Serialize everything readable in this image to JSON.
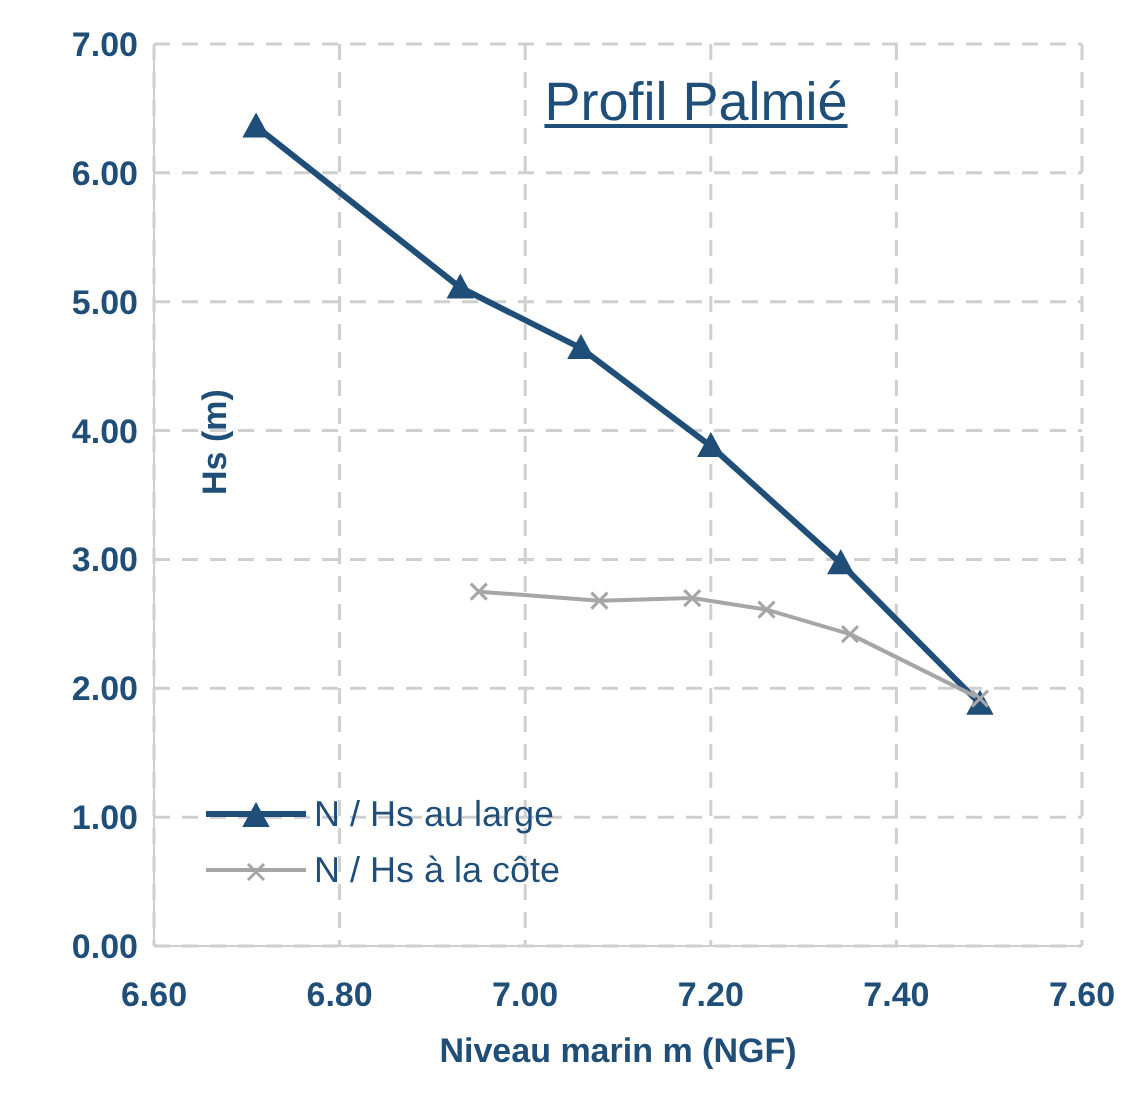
{
  "chart_data": {
    "type": "line",
    "title": "Profil Palmié",
    "xlabel": "Niveau marin m (NGF)",
    "ylabel": "Hs (m)",
    "xlim": [
      6.6,
      7.6
    ],
    "xticks": [
      {
        "value": 6.6,
        "label": "6.60"
      },
      {
        "value": 6.8,
        "label": "6.80"
      },
      {
        "value": 7.0,
        "label": "7.00"
      },
      {
        "value": 7.2,
        "label": "7.20"
      },
      {
        "value": 7.4,
        "label": "7.40"
      },
      {
        "value": 7.6,
        "label": "7.60"
      }
    ],
    "ylim": [
      0,
      7
    ],
    "yticks": [
      {
        "value": 0,
        "label": "0.00"
      },
      {
        "value": 1,
        "label": "1.00"
      },
      {
        "value": 2,
        "label": "2.00"
      },
      {
        "value": 3,
        "label": "3.00"
      },
      {
        "value": 4,
        "label": "4.00"
      },
      {
        "value": 5,
        "label": "5.00"
      },
      {
        "value": 6,
        "label": "6.00"
      },
      {
        "value": 7,
        "label": "7.00"
      }
    ],
    "grid": true,
    "legend": "bottom left",
    "line_style": "solid",
    "series": [
      {
        "name": "N / Hs au large",
        "color": "#1f4e79",
        "marker": "triangle",
        "x": [
          6.71,
          6.93,
          7.06,
          7.2,
          7.34,
          7.49
        ],
        "values": [
          6.36,
          5.11,
          4.64,
          3.88,
          2.97,
          1.88
        ]
      },
      {
        "name": "N / Hs à la côte",
        "color": "#a6a6a6",
        "marker": "cross",
        "x": [
          6.95,
          7.08,
          7.18,
          7.26,
          7.35,
          7.49
        ],
        "values": [
          2.75,
          2.68,
          2.7,
          2.61,
          2.42,
          1.92
        ]
      }
    ]
  }
}
